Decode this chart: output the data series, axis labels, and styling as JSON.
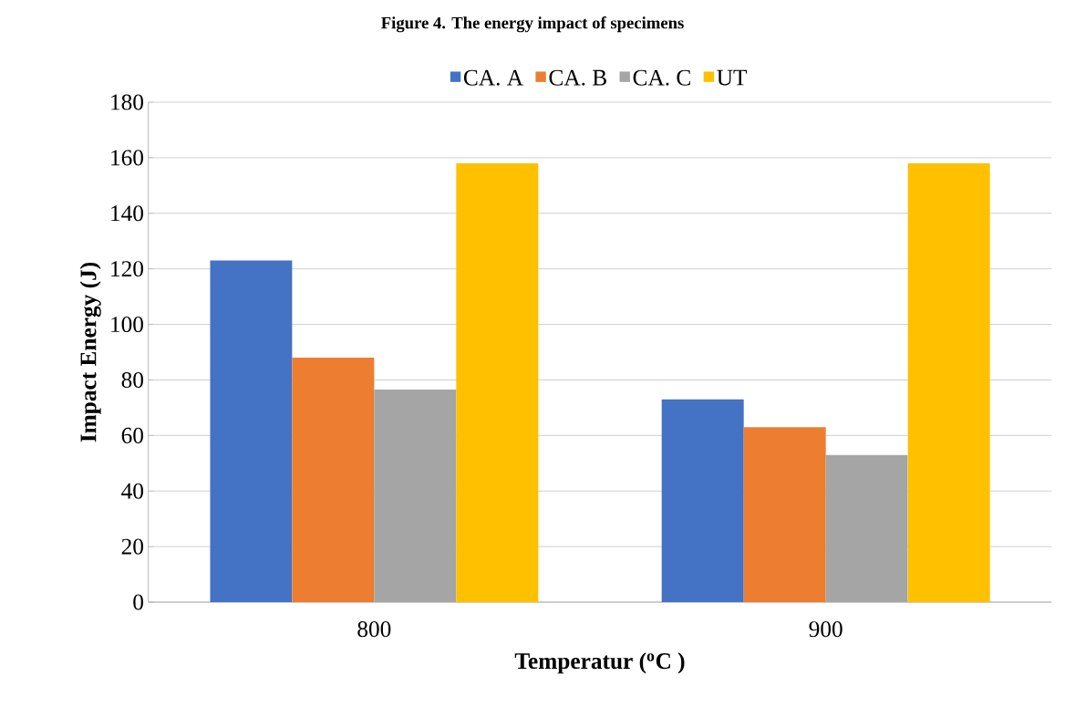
{
  "chart_data": {
    "type": "bar",
    "title": "Figure 4. The energy impact of specimens",
    "xlabel": "Temperatur ($^{o}$C )",
    "ylabel": "Impact Energy (J)",
    "categories": [
      "800",
      "900"
    ],
    "series": [
      {
        "name": "CA. A",
        "color": "#4472c4",
        "values": [
          123,
          73
        ]
      },
      {
        "name": "CA. B",
        "color": "#ed7d31",
        "values": [
          88,
          63
        ]
      },
      {
        "name": "CA. C",
        "color": "#a5a5a5",
        "values": [
          76.5,
          53
        ]
      },
      {
        "name": "UT",
        "color": "#ffc000",
        "values": [
          158,
          158
        ]
      }
    ],
    "ylim": [
      0,
      180
    ],
    "yticks": [
      0,
      20,
      40,
      60,
      80,
      100,
      120,
      140,
      160,
      180
    ],
    "grid": "y",
    "legend": "top"
  }
}
